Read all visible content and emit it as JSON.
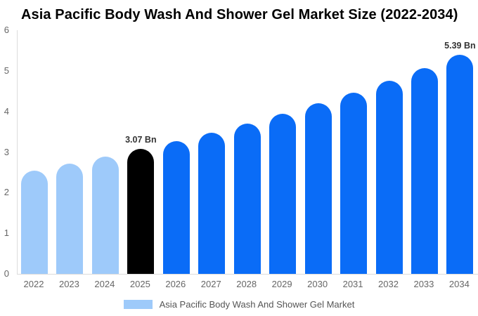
{
  "chart": {
    "title": "Asia Pacific Body Wash And Shower Gel Market Size (2022-2034)",
    "legend_label": "Asia Pacific Body Wash And Shower Gel Market"
  },
  "chart_data": {
    "type": "bar",
    "title": "Asia Pacific Body Wash And Shower Gel Market Size (2022-2034)",
    "categories": [
      "2022",
      "2023",
      "2024",
      "2025",
      "2026",
      "2027",
      "2028",
      "2029",
      "2030",
      "2031",
      "2032",
      "2033",
      "2034"
    ],
    "values": [
      2.54,
      2.71,
      2.88,
      3.07,
      3.27,
      3.48,
      3.7,
      3.94,
      4.2,
      4.47,
      4.75,
      5.06,
      5.39
    ],
    "values_unit": "Bn",
    "bar_colors": [
      "#9ECAFA",
      "#9ECAFA",
      "#9ECAFA",
      "#000000",
      "#0A6CF7",
      "#0A6CF7",
      "#0A6CF7",
      "#0A6CF7",
      "#0A6CF7",
      "#0A6CF7",
      "#0A6CF7",
      "#0A6CF7",
      "#0A6CF7"
    ],
    "annotations": {
      "2025": "3.07 Bn",
      "2034": "5.39 Bn"
    },
    "ylim": [
      0,
      6
    ],
    "yticks": [
      0,
      1,
      2,
      3,
      4,
      5,
      6
    ],
    "grid": false,
    "legend_position": "bottom",
    "legend_entries": [
      "Asia Pacific Body Wash And Shower Gel Market"
    ],
    "colors": {
      "historical_bar": "#9ECAFA",
      "highlight_bar": "#000000",
      "forecast_bar": "#0A6CF7",
      "axis_text": "#666666",
      "axis_line": "#DCDCDC",
      "annotation_text": "#333333",
      "title_text": "#000000",
      "legend_text": "#555555"
    }
  }
}
